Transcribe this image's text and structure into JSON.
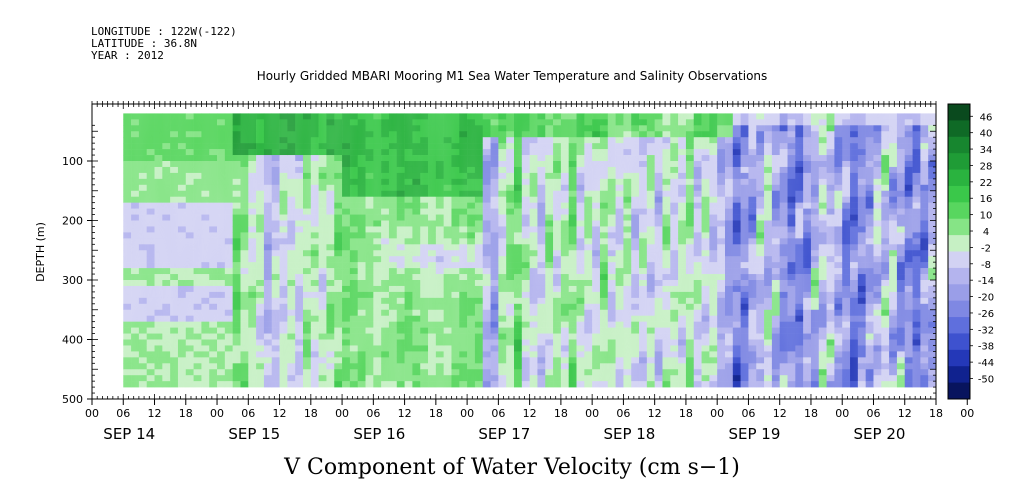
{
  "header": {
    "longitude": "LONGITUDE : 122W(-122)",
    "latitude": "LATITUDE : 36.8N",
    "year": "YEAR : 2012",
    "title": "Hourly Gridded MBARI Mooring M1 Sea Water Temperature and Salinity Observations"
  },
  "caption": "V Component of Water Velocity (cm s−1)",
  "chart_data": {
    "type": "heatmap",
    "title": "Hourly Gridded MBARI Mooring M1 Sea Water Temperature and Salinity Observations",
    "xlabel": "",
    "ylabel": "DEPTH (m)",
    "variable": "V Component of Water Velocity (cm s−1)",
    "x_range_hours": [
      0,
      162
    ],
    "x_units": "hours from SEP 14 00:00, 2012",
    "ylim": [
      500,
      0
    ],
    "yticks": [
      100,
      200,
      300,
      400,
      500
    ],
    "hour_tick_labels": [
      "00",
      "06",
      "12",
      "18",
      "00",
      "06",
      "12",
      "18",
      "00",
      "06",
      "12",
      "18",
      "00",
      "06",
      "12",
      "18",
      "00",
      "06",
      "12",
      "18",
      "00",
      "06",
      "12",
      "18",
      "00",
      "06",
      "12",
      "18",
      "00"
    ],
    "day_labels": [
      "SEP 14",
      "SEP 15",
      "SEP 16",
      "SEP 17",
      "SEP 18",
      "SEP 19",
      "SEP 20"
    ],
    "colorbar": {
      "labels": [
        "46",
        "40",
        "34",
        "28",
        "22",
        "16",
        "10",
        "4",
        "-2",
        "-8",
        "-14",
        "-20",
        "-26",
        "-32",
        "-38",
        "-44",
        "-50"
      ],
      "range": [
        -50,
        50
      ],
      "step": 6
    },
    "data_depth_range_m": [
      20,
      480
    ],
    "time_segments": [
      {
        "from_h": 6,
        "to_h": 27,
        "desc": "green top layer (~8 cm/s), blue-purple band ~170-270 m and ~310-370 m (~ -6 cm/s)"
      },
      {
        "from_h": 27,
        "to_h": 48,
        "desc": "dark green top (~25 cm/s), mixed green/purple below"
      },
      {
        "from_h": 48,
        "to_h": 75,
        "desc": "strong green top (~22 cm/s) with light green deep layers"
      },
      {
        "from_h": 75,
        "to_h": 99,
        "desc": "alternating green and purple vertical bands"
      },
      {
        "from_h": 99,
        "to_h": 123,
        "desc": "mixed green/purple with light blue patches"
      },
      {
        "from_h": 123,
        "to_h": 162,
        "desc": "predominantly blue (~ -20 to -28 cm/s) with purple patches"
      }
    ]
  }
}
